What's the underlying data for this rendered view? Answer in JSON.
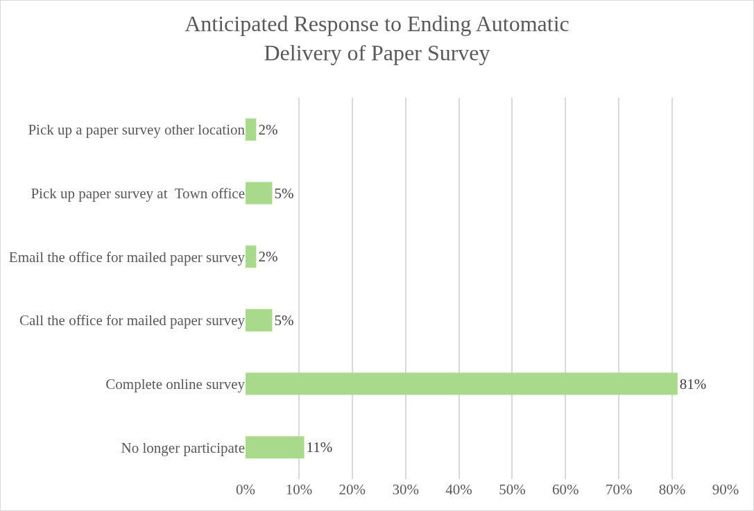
{
  "chart_data": {
    "type": "bar",
    "orientation": "horizontal",
    "title": "Anticipated Response to Ending Automatic Delivery of Paper Survey",
    "categories": [
      "Pick up a paper survey other location",
      "Pick up paper survey at  Town office",
      "Email the office for mailed paper survey",
      "Call the office for mailed paper survey",
      "Complete online survey",
      "No longer participate"
    ],
    "values": [
      2,
      5,
      2,
      5,
      81,
      11
    ],
    "value_labels": [
      "2%",
      "5%",
      "2%",
      "5%",
      "81%",
      "11%"
    ],
    "color": "#a9d98a",
    "xlim": [
      0,
      90
    ],
    "xticks": [
      {
        "value": 0,
        "label": "0%"
      },
      {
        "value": 10,
        "label": "10%"
      },
      {
        "value": 20,
        "label": "20%"
      },
      {
        "value": 30,
        "label": "30%"
      },
      {
        "value": 40,
        "label": "40%"
      },
      {
        "value": 50,
        "label": "50%"
      },
      {
        "value": 60,
        "label": "60%"
      },
      {
        "value": 70,
        "label": "70%"
      },
      {
        "value": 80,
        "label": "80%"
      },
      {
        "value": 90,
        "label": "90%"
      }
    ],
    "grid": "x",
    "legend": false
  }
}
